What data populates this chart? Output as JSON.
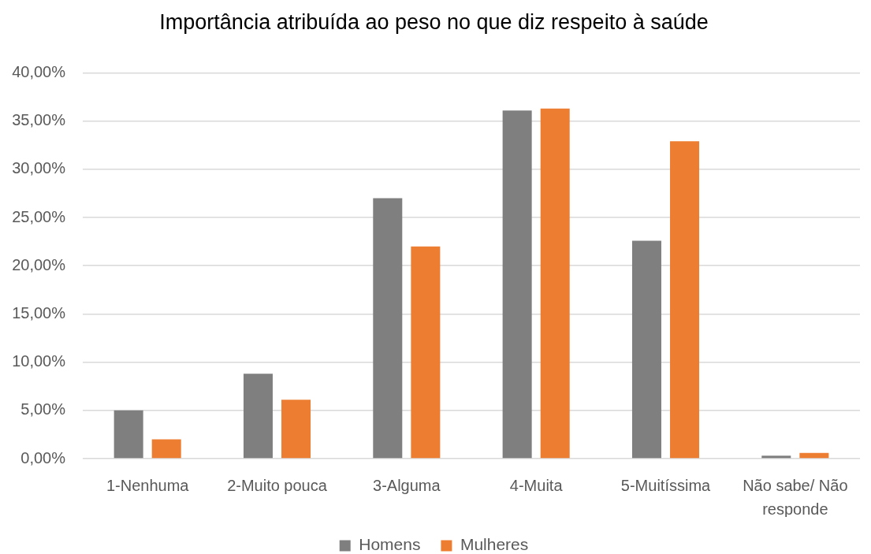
{
  "chart_data": {
    "type": "bar",
    "title": "Importância atribuída ao peso no que diz respeito à saúde",
    "categories": [
      "1-Nenhuma",
      "2-Muito pouca",
      "3-Alguma",
      "4-Muita",
      "5-Muitíssima",
      "Não sabe/ Não responde"
    ],
    "series": [
      {
        "name": "Homens",
        "color": "#7f7f7f",
        "values": [
          5.0,
          8.8,
          27.0,
          36.1,
          22.6,
          0.3
        ]
      },
      {
        "name": "Mulheres",
        "color": "#ed7d31",
        "values": [
          2.0,
          6.1,
          22.0,
          36.3,
          32.9,
          0.6
        ]
      }
    ],
    "ylim": [
      0,
      40
    ],
    "yticks": [
      {
        "value": 0,
        "label": "0,00%"
      },
      {
        "value": 5,
        "label": "5,00%"
      },
      {
        "value": 10,
        "label": "10,00%"
      },
      {
        "value": 15,
        "label": "15,00%"
      },
      {
        "value": 20,
        "label": "20,00%"
      },
      {
        "value": 25,
        "label": "25,00%"
      },
      {
        "value": 30,
        "label": "30,00%"
      },
      {
        "value": 35,
        "label": "35,00%"
      },
      {
        "value": 40,
        "label": "40,00%"
      }
    ],
    "grid": "y",
    "legend": "bottom"
  }
}
